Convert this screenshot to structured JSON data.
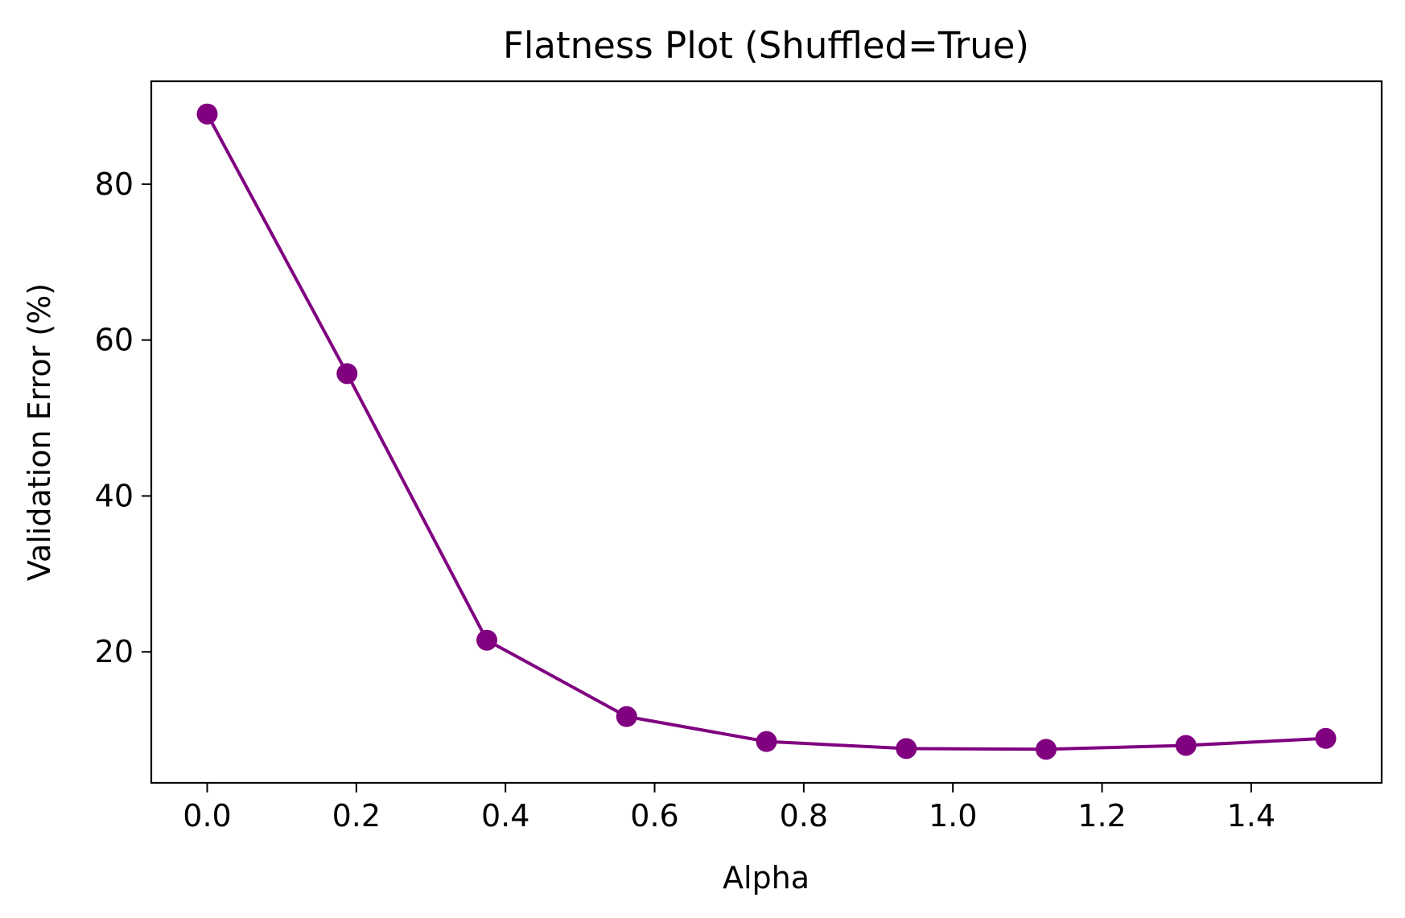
{
  "chart_data": {
    "type": "line",
    "title": "Flatness Plot (Shuffled=True)",
    "xlabel": "Alpha",
    "ylabel": "Validation Error (%)",
    "xlim": [
      -0.075,
      1.575
    ],
    "ylim": [
      3.2,
      93.2
    ],
    "grid": false,
    "xticks": [
      0.0,
      0.2,
      0.4,
      0.6,
      0.8,
      1.0,
      1.2,
      1.4
    ],
    "xtick_labels": [
      "0.0",
      "0.2",
      "0.4",
      "0.6",
      "0.8",
      "1.0",
      "1.2",
      "1.4"
    ],
    "yticks": [
      20,
      40,
      60,
      80
    ],
    "ytick_labels": [
      "20",
      "40",
      "60",
      "80"
    ],
    "series": [
      {
        "color": "#800080",
        "marker": "circle",
        "x": [
          0.0,
          0.1875,
          0.375,
          0.5625,
          0.75,
          0.9375,
          1.125,
          1.3125,
          1.5
        ],
        "y": [
          89.0,
          55.7,
          21.5,
          11.7,
          8.5,
          7.6,
          7.5,
          8.0,
          8.9
        ]
      }
    ]
  }
}
